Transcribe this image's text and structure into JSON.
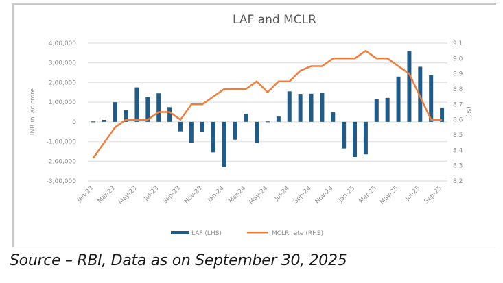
{
  "chart_data": {
    "type": "bar+line",
    "title": "LAF and MCLR",
    "categories": [
      "Jan-23",
      "Feb-23",
      "Mar-23",
      "Apr-23",
      "May-23",
      "Jun-23",
      "Jul-23",
      "Aug-23",
      "Sep-23",
      "Oct-23",
      "Nov-23",
      "Dec-23",
      "Jan-24",
      "Feb-24",
      "Mar-24",
      "Apr-24",
      "May-24",
      "Jun-24",
      "Jul-24",
      "Aug-24",
      "Sep-24",
      "Oct-24",
      "Nov-24",
      "Dec-24",
      "Jan-25",
      "Feb-25",
      "Mar-25",
      "Apr-25",
      "May-25",
      "Jun-25",
      "Jul-25",
      "Aug-25",
      "Sep-25"
    ],
    "x_tick_labels": [
      "Jan-23",
      "Mar-23",
      "May-23",
      "Jul-23",
      "Sep-23",
      "Nov-23",
      "Jan-24",
      "Mar-24",
      "May-24",
      "Jul-24",
      "Sep-24",
      "Nov-24",
      "Jan-25",
      "Mar-25",
      "May-25",
      "Jul-25",
      "Sep-25"
    ],
    "series": [
      {
        "name": "LAF (LHS)",
        "type": "bar",
        "axis": "left",
        "color": "#1f5c87",
        "values": [
          2000,
          10000,
          100000,
          60000,
          175000,
          125000,
          145000,
          75000,
          -48000,
          -105000,
          -50000,
          -155000,
          -230000,
          -90000,
          40000,
          -107000,
          2000,
          27000,
          155000,
          142000,
          143000,
          146000,
          48000,
          -135000,
          -178000,
          -165000,
          115000,
          122000,
          230000,
          360000,
          280000,
          237000,
          73000
        ]
      },
      {
        "name": "MCLR rate (RHS)",
        "type": "line",
        "axis": "right",
        "color": "#f07d3a",
        "values": [
          8.35,
          8.45,
          8.55,
          8.6,
          8.6,
          8.6,
          8.65,
          8.65,
          8.6,
          8.7,
          8.7,
          8.75,
          8.8,
          8.8,
          8.8,
          8.85,
          8.78,
          8.85,
          8.85,
          8.92,
          8.95,
          8.95,
          9.0,
          9.0,
          9.0,
          9.05,
          9.0,
          9.0,
          8.95,
          8.9,
          8.75,
          8.6,
          8.6
        ]
      }
    ],
    "left_axis": {
      "label": "INR in lac crore",
      "ylim": [
        -300000,
        400000
      ],
      "ticks": [
        400000,
        300000,
        200000,
        100000,
        0,
        -100000,
        -200000,
        -300000
      ],
      "tick_labels": [
        "4,00,000",
        "3,00,000",
        "2,00,000",
        "1,00,000",
        "0",
        "-1,00,000",
        "-2,00,000",
        "-3,00,000"
      ]
    },
    "right_axis": {
      "label": "(%)",
      "ylim": [
        8.2,
        9.1
      ],
      "ticks": [
        9.1,
        9.0,
        8.9,
        8.8,
        8.7,
        8.6,
        8.5,
        8.4,
        8.3,
        8.2
      ],
      "tick_labels": [
        "9.1",
        "9.0",
        "8.9",
        "8.8",
        "8.7",
        "8.6",
        "8.5",
        "8.4",
        "8.3",
        "8.2"
      ]
    },
    "grid": true,
    "legend_position": "bottom-center"
  },
  "source_note": "Source – RBI, Data as on September 30, 2025"
}
